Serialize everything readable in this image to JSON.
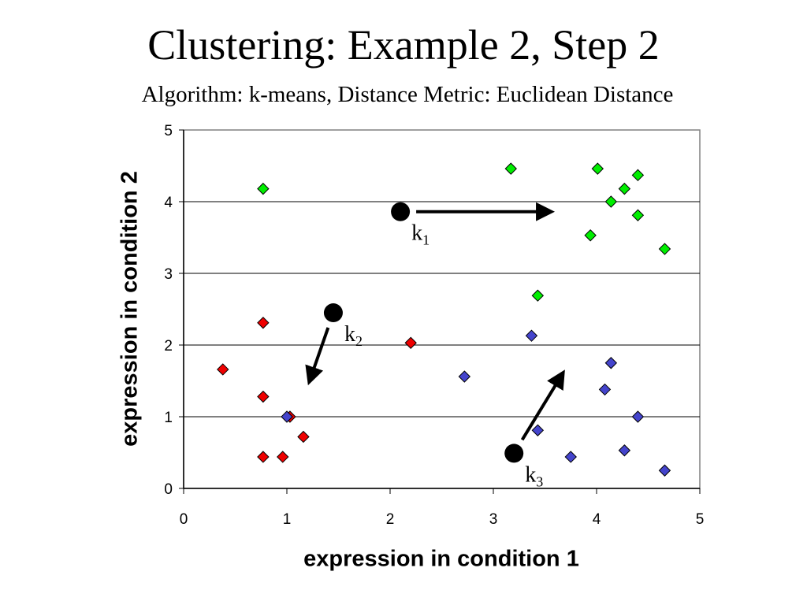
{
  "title": "Clustering: Example 2, Step 2",
  "subtitle": "Algorithm: k-means, Distance Metric: Euclidean Distance",
  "chart_data": {
    "type": "scatter",
    "title": "Clustering: Example 2, Step 2",
    "subtitle": "Algorithm: k-means, Distance Metric: Euclidean Distance",
    "xlabel": "expression in condition 1",
    "ylabel": "expression in condition 2",
    "xlim": [
      0,
      5
    ],
    "ylim": [
      0,
      5
    ],
    "xticks": [
      "0",
      "1",
      "2",
      "3",
      "4",
      "5"
    ],
    "yticks": [
      "0",
      "1",
      "2",
      "3",
      "4",
      "5"
    ],
    "grid": "horizontal",
    "legend": "none",
    "series": [
      {
        "color": "#00ee00",
        "marker": "diamond",
        "points": [
          [
            0.77,
            4.18
          ],
          [
            3.17,
            4.46
          ],
          [
            4.01,
            4.46
          ],
          [
            4.4,
            4.37
          ],
          [
            4.27,
            4.18
          ],
          [
            4.14,
            4.0
          ],
          [
            4.4,
            3.81
          ],
          [
            3.94,
            3.53
          ],
          [
            4.66,
            3.34
          ],
          [
            3.43,
            2.69
          ]
        ]
      },
      {
        "color": "#ee0000",
        "marker": "diamond",
        "points": [
          [
            0.77,
            2.31
          ],
          [
            2.2,
            2.03
          ],
          [
            0.38,
            1.66
          ],
          [
            0.77,
            1.28
          ],
          [
            1.03,
            1.0
          ],
          [
            1.16,
            0.72
          ],
          [
            0.77,
            0.44
          ],
          [
            0.96,
            0.44
          ]
        ]
      },
      {
        "color": "#4444cc",
        "marker": "diamond",
        "points": [
          [
            3.37,
            2.13
          ],
          [
            2.72,
            1.56
          ],
          [
            4.14,
            1.75
          ],
          [
            4.08,
            1.38
          ],
          [
            4.4,
            1.0
          ],
          [
            1.0,
            1.0
          ],
          [
            3.43,
            0.81
          ],
          [
            3.75,
            0.44
          ],
          [
            4.27,
            0.53
          ],
          [
            4.66,
            0.25
          ]
        ]
      }
    ],
    "centroids": [
      {
        "label": "k",
        "subscript": "1",
        "x": 2.1,
        "y": 3.86,
        "to_x": 3.55,
        "to_y": 3.86
      },
      {
        "label": "k",
        "subscript": "2",
        "x": 1.45,
        "y": 2.45,
        "to_x": 1.22,
        "to_y": 1.5
      },
      {
        "label": "k",
        "subscript": "3",
        "x": 3.2,
        "y": 0.49,
        "to_x": 3.67,
        "to_y": 1.6
      }
    ]
  }
}
